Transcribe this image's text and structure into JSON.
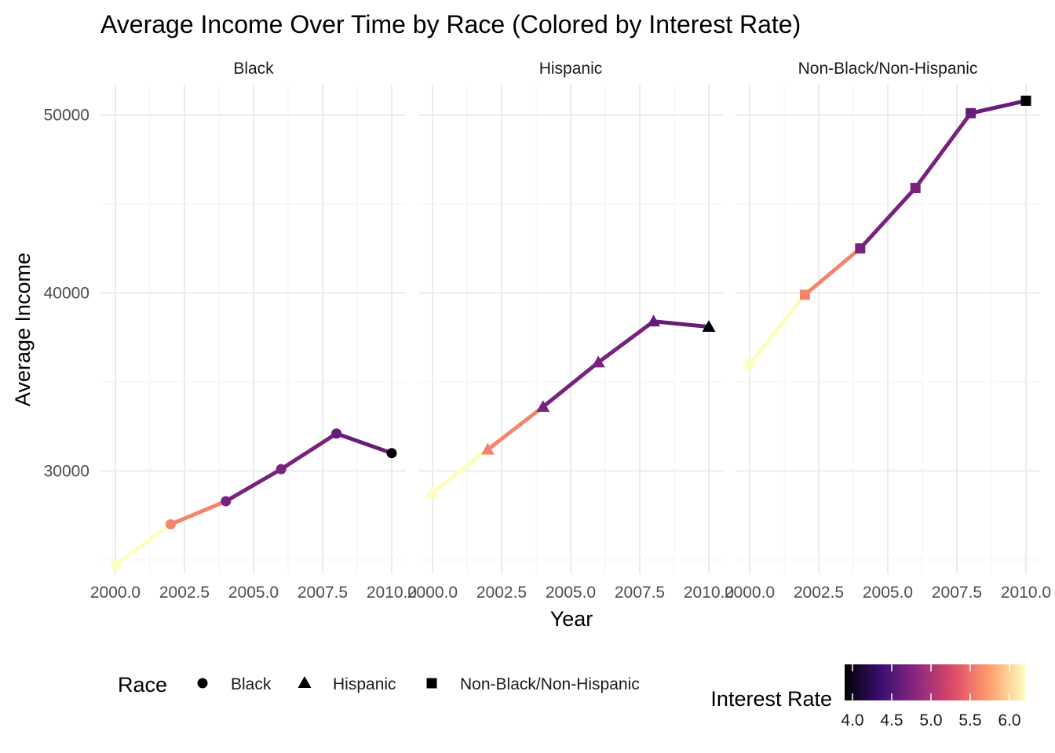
{
  "chart_data": {
    "type": "line",
    "title": "Average Income Over Time by Race (Colored by Interest Rate)",
    "xlabel": "Year",
    "ylabel": "Average Income",
    "x": [
      2000,
      2002,
      2004,
      2006,
      2008,
      2010
    ],
    "xlim": [
      2000,
      2010
    ],
    "ylim": [
      24200,
      51700
    ],
    "x_ticks": [
      "2000.0",
      "2002.5",
      "2005.0",
      "2007.5",
      "2010.0"
    ],
    "x_tick_values": [
      2000,
      2002.5,
      2005,
      2007.5,
      2010
    ],
    "y_ticks": [
      "30000",
      "40000",
      "50000"
    ],
    "y_tick_values": [
      30000,
      40000,
      50000
    ],
    "grid": true,
    "interest_rate_by_year": [
      6.2,
      5.6,
      4.7,
      4.7,
      4.6,
      3.9
    ],
    "panels": [
      {
        "name": "Black",
        "shape": "circle",
        "values": [
          24700,
          27000,
          28300,
          30100,
          32100,
          31000
        ]
      },
      {
        "name": "Hispanic",
        "shape": "triangle",
        "values": [
          28800,
          31200,
          33600,
          36100,
          38400,
          38100
        ]
      },
      {
        "name": "Non-Black/Non-Hispanic",
        "shape": "square",
        "values": [
          36000,
          39900,
          42500,
          45900,
          50100,
          50800
        ]
      }
    ],
    "legend": {
      "placement": "bottom",
      "shape_title": "Race",
      "shape_items": [
        {
          "label": "Black",
          "shape": "circle"
        },
        {
          "label": "Hispanic",
          "shape": "triangle"
        },
        {
          "label": "Non-Black/Non-Hispanic",
          "shape": "square"
        }
      ],
      "color_title": "Interest Rate",
      "color_ticks": [
        "4.0",
        "4.5",
        "5.0",
        "5.5",
        "6.0"
      ],
      "color_tick_values": [
        4.0,
        4.5,
        5.0,
        5.5,
        6.0
      ],
      "color_range": [
        3.9,
        6.2
      ],
      "palette": [
        "#000004",
        "#3b0f70",
        "#8c2981",
        "#de4968",
        "#fe9f6d",
        "#fcfdbf"
      ]
    }
  }
}
